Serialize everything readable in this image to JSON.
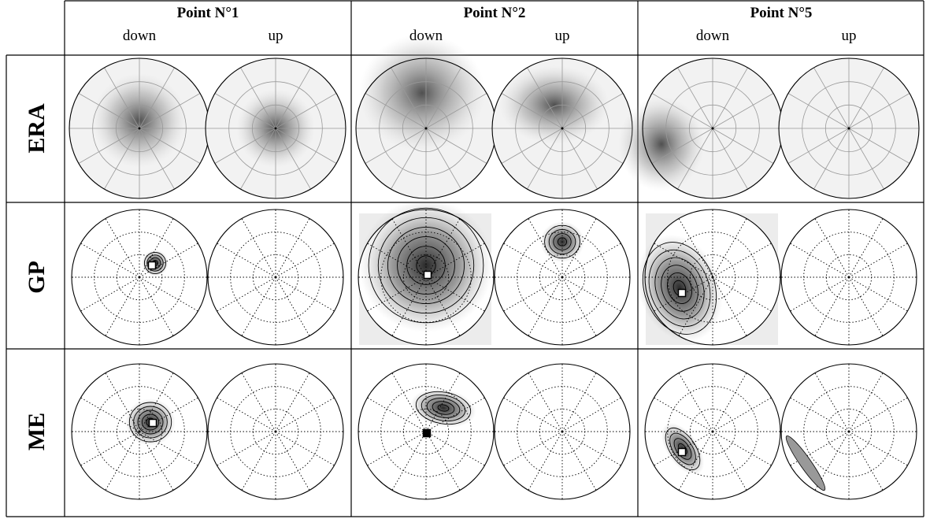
{
  "columns": [
    {
      "title": "Point N°1",
      "subtitles": [
        "down",
        "up"
      ]
    },
    {
      "title": "Point N°2",
      "subtitles": [
        "down",
        "up"
      ]
    },
    {
      "title": "Point N°5",
      "subtitles": [
        "down",
        "up"
      ]
    }
  ],
  "rows": [
    "ERA",
    "GP",
    "ME"
  ]
}
